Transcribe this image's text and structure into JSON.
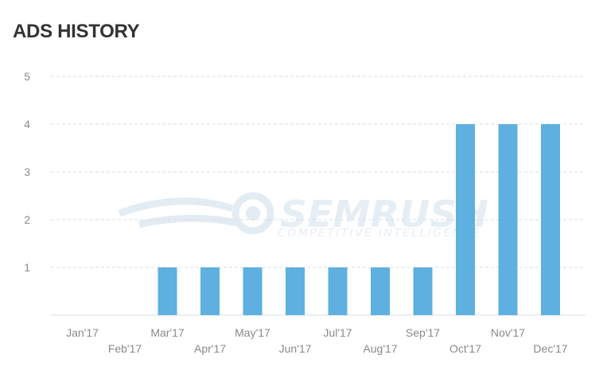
{
  "header": {
    "title": "ADS HISTORY"
  },
  "watermark": {
    "brand": "SEMRUSH",
    "tagline": "COMPETITIVE INTELLIGENCE"
  },
  "colors": {
    "bar": "#5eb0e0",
    "grid": "#d9dde3",
    "axis_text": "#8a8a8a",
    "title": "#333333",
    "watermark": "#e3ecf3"
  },
  "chart_data": {
    "type": "bar",
    "title": "ADS HISTORY",
    "xlabel": "",
    "ylabel": "",
    "categories": [
      "Jan'17",
      "Feb'17",
      "Mar'17",
      "Apr'17",
      "May'17",
      "Jun'17",
      "Jul'17",
      "Aug'17",
      "Sep'17",
      "Oct'17",
      "Nov'17",
      "Dec'17"
    ],
    "values": [
      0,
      0,
      1,
      1,
      1,
      1,
      1,
      1,
      1,
      4,
      4,
      4
    ],
    "ylim": [
      0,
      5
    ],
    "yticks": [
      0,
      1,
      2,
      3,
      4,
      5
    ],
    "grid": true,
    "legend": "none"
  }
}
